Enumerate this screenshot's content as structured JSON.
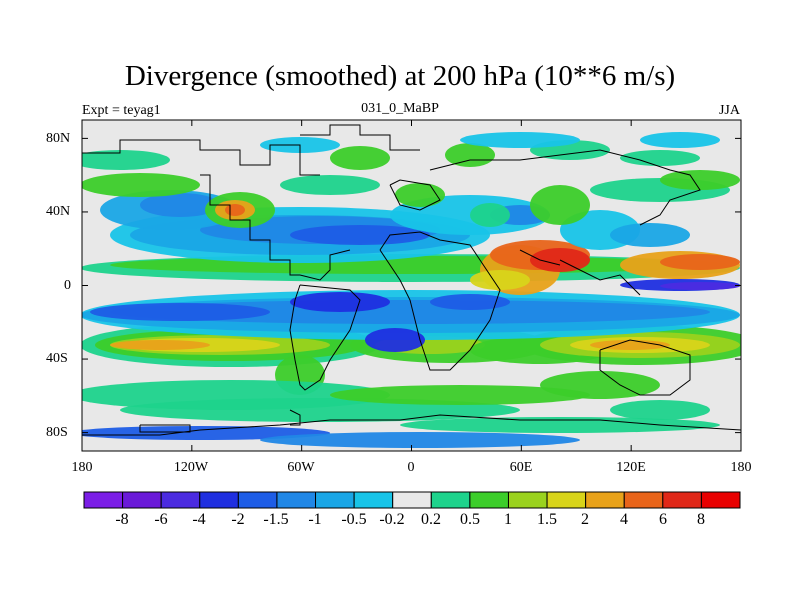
{
  "chart_data": {
    "type": "heatmap",
    "title": "Divergence (smoothed) at 200 hPa (10**6 m/s)",
    "subtitle_left": "Expt = teyag1",
    "subtitle_center": "031_0_MaBP",
    "subtitle_right": "JJA",
    "x_tick_labels": [
      "180",
      "120W",
      "60W",
      "0",
      "60E",
      "120E",
      "180"
    ],
    "x_range": [
      -180,
      180
    ],
    "y_tick_labels": [
      "80N",
      "40N",
      "0",
      "40S",
      "80S"
    ],
    "y_range": [
      -90,
      90
    ],
    "colorbar_labels": [
      "-8",
      "-6",
      "-4",
      "-2",
      "-1.5",
      "-1",
      "-0.5",
      "-0.2",
      "0.2",
      "0.5",
      "1",
      "1.5",
      "2",
      "4",
      "6",
      "8"
    ],
    "colorbar_colors": [
      "#7b1ee6",
      "#6a1ad8",
      "#4b2be0",
      "#1f2fe0",
      "#1e5de6",
      "#2087e6",
      "#1aa6e6",
      "#18c4e8",
      "#e8e8e8",
      "#1ed38c",
      "#3ccd2a",
      "#9ad21e",
      "#d8d41a",
      "#e8a21a",
      "#e8641a",
      "#e02818",
      "#e80000"
    ],
    "background_color": "#e8e8e8"
  }
}
